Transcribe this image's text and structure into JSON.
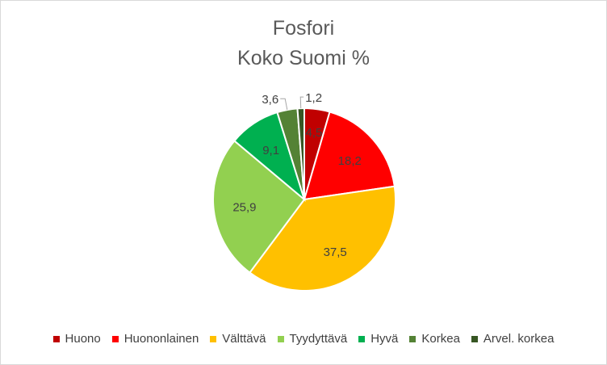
{
  "chart_data": {
    "type": "pie",
    "title_lines": [
      "Fosfori",
      "Koko Suomi %"
    ],
    "categories": [
      "Huono",
      "Huononlainen",
      "Välttävä",
      "Tyydyttävä",
      "Hyvä",
      "Korkea",
      "Arvel. korkea"
    ],
    "values": [
      4.5,
      18.2,
      37.5,
      25.9,
      9.1,
      3.6,
      1.2
    ],
    "value_labels": [
      "4,5",
      "18,2",
      "37,5",
      "25,9",
      "9,1",
      "3,6",
      "1,2"
    ],
    "colors": [
      "#C00000",
      "#FF0000",
      "#FFC000",
      "#92D050",
      "#00B050",
      "#548235",
      "#375623"
    ],
    "legend_position": "bottom"
  }
}
